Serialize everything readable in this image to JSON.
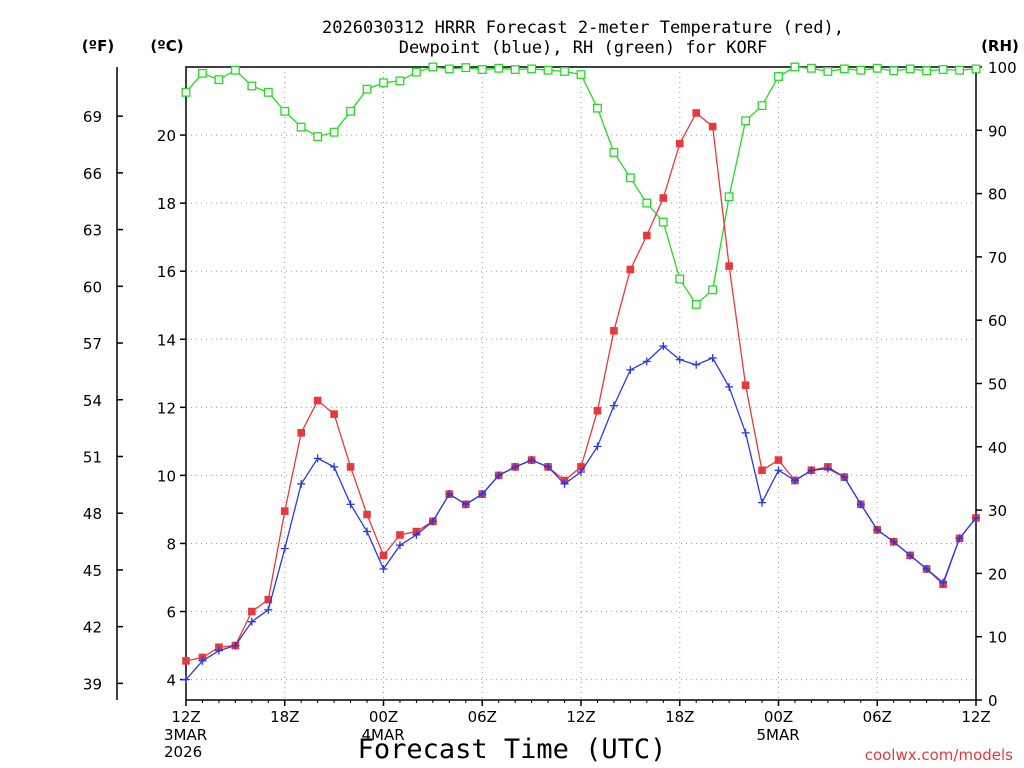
{
  "chart_data": {
    "type": "line",
    "title_line1": "2026030312 HRRR Forecast 2-meter Temperature (red),",
    "title_line2": "Dewpoint (blue), RH (green) for KORF",
    "xlabel": "Forecast Time (UTC)",
    "unit_f": "(ºF)",
    "unit_c": "(ºC)",
    "unit_rh": "(RH)",
    "credit": "coolwx.com/models",
    "x_ticks": [
      {
        "h": 0,
        "label": "12Z",
        "sub": [
          "3MAR",
          "2026"
        ]
      },
      {
        "h": 6,
        "label": "18Z",
        "sub": []
      },
      {
        "h": 12,
        "label": "00Z",
        "sub": [
          "4MAR"
        ]
      },
      {
        "h": 18,
        "label": "06Z",
        "sub": []
      },
      {
        "h": 24,
        "label": "12Z",
        "sub": []
      },
      {
        "h": 30,
        "label": "18Z",
        "sub": []
      },
      {
        "h": 36,
        "label": "00Z",
        "sub": [
          "5MAR"
        ]
      },
      {
        "h": 42,
        "label": "06Z",
        "sub": []
      },
      {
        "h": 48,
        "label": "12Z",
        "sub": []
      }
    ],
    "x_range": [
      0,
      48
    ],
    "c_range": [
      3.4,
      22.0
    ],
    "c_ticks": [
      "4",
      "6",
      "8",
      "10",
      "12",
      "14",
      "16",
      "18",
      "20"
    ],
    "f_ticks": [
      "39",
      "42",
      "45",
      "48",
      "51",
      "54",
      "57",
      "60",
      "63",
      "66",
      "69"
    ],
    "rh_range": [
      0,
      100
    ],
    "rh_ticks": [
      "0",
      "10",
      "20",
      "30",
      "40",
      "50",
      "60",
      "70",
      "80",
      "90",
      "100"
    ],
    "grid": true,
    "colors": {
      "temperature": "#e8383c",
      "dewpoint": "#2a3ae0",
      "rh": "#22dd22",
      "credit": "#e8383c"
    },
    "series": [
      {
        "key": "temperature",
        "values": [
          4.55,
          4.65,
          4.95,
          5.0,
          6.0,
          6.35,
          8.95,
          11.25,
          12.2,
          11.8,
          10.25,
          8.85,
          7.65,
          8.25,
          8.35,
          8.65,
          9.45,
          9.15,
          9.45,
          10.0,
          10.25,
          10.45,
          10.25,
          9.85,
          10.25,
          11.9,
          14.25,
          16.05,
          17.05,
          18.15,
          19.75,
          20.65,
          20.25,
          16.15,
          12.65,
          10.15,
          10.45,
          9.85,
          10.15,
          10.25,
          9.95,
          9.15,
          8.4,
          8.05,
          7.65,
          7.25,
          6.8,
          8.15,
          8.75
        ]
      },
      {
        "key": "dewpoint",
        "values": [
          4.0,
          4.55,
          4.85,
          5.0,
          5.7,
          6.05,
          7.85,
          9.75,
          10.5,
          10.25,
          9.15,
          8.35,
          7.25,
          7.95,
          8.25,
          8.65,
          9.45,
          9.15,
          9.45,
          10.0,
          10.25,
          10.45,
          10.25,
          9.75,
          10.1,
          10.85,
          12.05,
          13.1,
          13.35,
          13.8,
          13.4,
          13.25,
          13.45,
          12.6,
          11.25,
          9.2,
          10.15,
          9.85,
          10.15,
          10.2,
          9.95,
          9.15,
          8.4,
          8.05,
          7.65,
          7.25,
          6.85,
          8.15,
          8.75
        ]
      },
      {
        "key": "rh",
        "values": [
          96,
          99,
          98,
          99.5,
          97,
          96,
          93,
          90.5,
          89,
          89.7,
          93,
          96.5,
          97.5,
          97.8,
          99.2,
          100,
          99.7,
          99.9,
          99.6,
          99.8,
          99.6,
          99.7,
          99.5,
          99.3,
          98.8,
          93.5,
          86.5,
          82.5,
          78.5,
          75.5,
          66.5,
          62.5,
          64.8,
          79.5,
          91.5,
          93.9,
          98.5,
          100,
          99.8,
          99.3,
          99.7,
          99.5,
          99.8,
          99.4,
          99.7,
          99.4,
          99.6,
          99.5,
          99.7
        ]
      }
    ]
  }
}
